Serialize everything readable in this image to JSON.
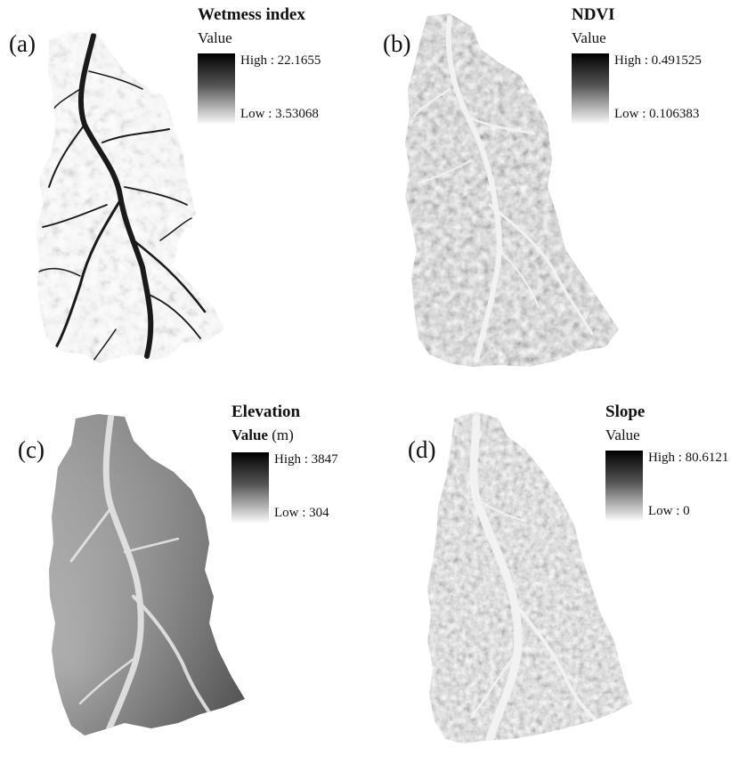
{
  "panels": [
    {
      "id": "a",
      "label": "(a)",
      "title": "Wetmess index",
      "value_label": "Value",
      "unit": "",
      "high": "High : 22.1655",
      "low": "Low : 3.53068"
    },
    {
      "id": "b",
      "label": "(b)",
      "title": "NDVI",
      "value_label": "Value",
      "unit": "",
      "high": "High : 0.491525",
      "low": "Low : 0.106383"
    },
    {
      "id": "c",
      "label": "(c)",
      "title": "Elevation",
      "value_label": "Value",
      "unit": "(m)",
      "high": "High : 3847",
      "low": "Low : 304"
    },
    {
      "id": "d",
      "label": "(d)",
      "title": "Slope",
      "value_label": "Value",
      "unit": "",
      "high": "High : 80.6121",
      "low": "Low : 0"
    }
  ],
  "colors": {
    "ramp_high": "#000000",
    "ramp_low": "#ffffff"
  }
}
